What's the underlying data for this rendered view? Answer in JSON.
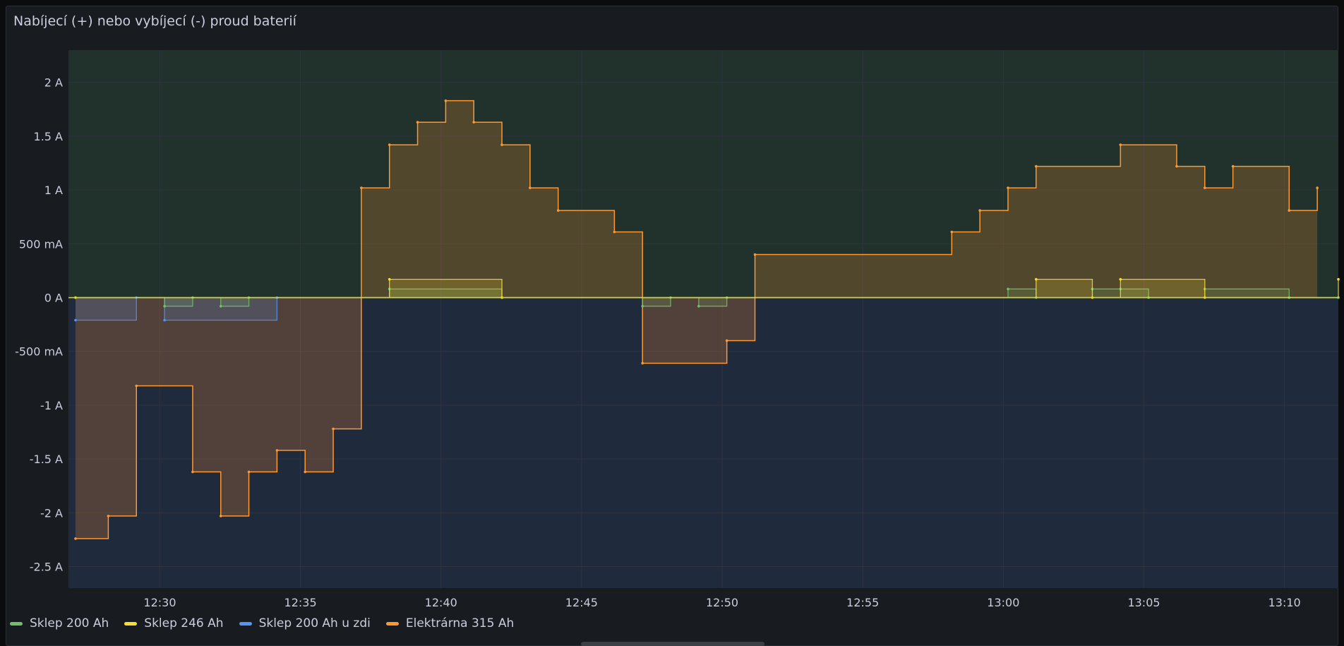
{
  "panel": {
    "title": "Nabíjecí (+) nebo vybíjecí (-) proud baterií"
  },
  "colors": {
    "background": "#181b1f",
    "positive_zone": "#21312b",
    "negative_zone": "#202a3d",
    "grid": "#2f3440",
    "zero_line": "#d4d43a"
  },
  "chart_data": {
    "type": "area",
    "step": "after",
    "x_unit": "time",
    "x_axis_ticks": [
      "12:30",
      "12:35",
      "12:40",
      "12:45",
      "12:50",
      "12:55",
      "13:00",
      "13:05",
      "13:10"
    ],
    "y_axis_ticks": [
      "2 A",
      "1.5 A",
      "1 A",
      "500 mA",
      "0 A",
      "-500 mA",
      "-1 A",
      "-1.5 A",
      "-2 A",
      "-2.5 A"
    ],
    "xlim": [
      "12:26:45",
      "13:11:55"
    ],
    "ylim": [
      -2.7,
      2.3
    ],
    "grid": true,
    "legend_position": "bottom-left",
    "series": [
      {
        "name": "Sklep 200 Ah",
        "color": "#73bf69",
        "points": [
          [
            "12:27:00",
            0
          ],
          [
            "12:30:10",
            -0.08
          ],
          [
            "12:31:10",
            0
          ],
          [
            "12:32:10",
            -0.08
          ],
          [
            "12:33:10",
            0
          ],
          [
            "12:38:10",
            0.08
          ],
          [
            "12:42:10",
            0
          ],
          [
            "12:47:10",
            -0.08
          ],
          [
            "12:48:10",
            0
          ],
          [
            "12:49:10",
            -0.08
          ],
          [
            "12:50:10",
            0
          ],
          [
            "13:00:10",
            0.08
          ],
          [
            "13:01:10",
            0
          ],
          [
            "13:03:10",
            0.08
          ],
          [
            "13:04:10",
            0.08
          ],
          [
            "13:05:10",
            0
          ],
          [
            "13:07:10",
            0.08
          ],
          [
            "13:10:10",
            0
          ],
          [
            "13:11:55",
            0
          ]
        ]
      },
      {
        "name": "Sklep 246 Ah",
        "color": "#fade2a",
        "points": [
          [
            "12:27:00",
            0
          ],
          [
            "12:38:10",
            0.17
          ],
          [
            "12:42:10",
            0
          ],
          [
            "13:01:10",
            0.17
          ],
          [
            "13:03:10",
            0
          ],
          [
            "13:04:10",
            0.17
          ],
          [
            "13:07:10",
            0
          ],
          [
            "13:11:55",
            0.17
          ]
        ]
      },
      {
        "name": "Sklep 200 Ah u zdi",
        "color": "#5794f2",
        "points": [
          [
            "12:27:00",
            -0.21
          ],
          [
            "12:29:10",
            0
          ],
          [
            "12:30:10",
            -0.21
          ],
          [
            "12:34:10",
            0
          ],
          [
            "13:11:55",
            0
          ]
        ]
      },
      {
        "name": "Elektrárna 315 Ah",
        "color": "#ff9830",
        "points": [
          [
            "12:27:00",
            -2.24
          ],
          [
            "12:28:10",
            -2.03
          ],
          [
            "12:29:10",
            -0.82
          ],
          [
            "12:31:10",
            -1.62
          ],
          [
            "12:32:10",
            -2.03
          ],
          [
            "12:33:10",
            -1.62
          ],
          [
            "12:34:10",
            -1.42
          ],
          [
            "12:35:10",
            -1.62
          ],
          [
            "12:36:10",
            -1.22
          ],
          [
            "12:37:10",
            1.02
          ],
          [
            "12:38:10",
            1.42
          ],
          [
            "12:39:10",
            1.63
          ],
          [
            "12:40:10",
            1.83
          ],
          [
            "12:41:10",
            1.63
          ],
          [
            "12:42:10",
            1.42
          ],
          [
            "12:43:10",
            1.02
          ],
          [
            "12:44:10",
            0.81
          ],
          [
            "12:46:10",
            0.61
          ],
          [
            "12:47:10",
            -0.61
          ],
          [
            "12:50:10",
            -0.4
          ],
          [
            "12:51:10",
            0.4
          ],
          [
            "12:58:10",
            0.61
          ],
          [
            "12:59:10",
            0.81
          ],
          [
            "13:00:10",
            1.02
          ],
          [
            "13:01:10",
            1.22
          ],
          [
            "13:04:10",
            1.42
          ],
          [
            "13:06:10",
            1.22
          ],
          [
            "13:07:10",
            1.02
          ],
          [
            "13:08:10",
            1.22
          ],
          [
            "13:10:10",
            0.81
          ],
          [
            "13:11:10",
            1.02
          ]
        ]
      }
    ]
  }
}
